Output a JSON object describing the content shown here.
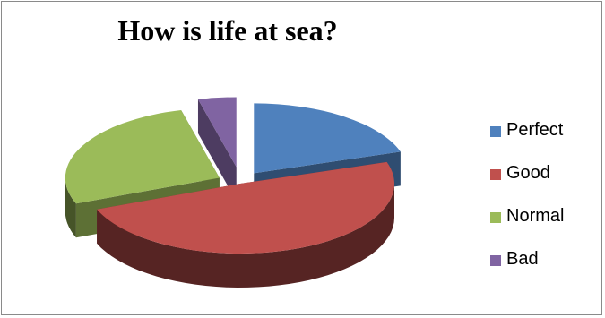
{
  "chart_data": {
    "type": "pie",
    "title": "How is life at sea?",
    "categories": [
      "Perfect",
      "Good",
      "Normal",
      "Bad"
    ],
    "values": [
      20,
      49,
      27,
      4
    ],
    "colors": [
      "#4f81bd",
      "#c0504d",
      "#9bbb59",
      "#8064a2"
    ],
    "legend_position": "right",
    "style": "3d-exploded"
  }
}
